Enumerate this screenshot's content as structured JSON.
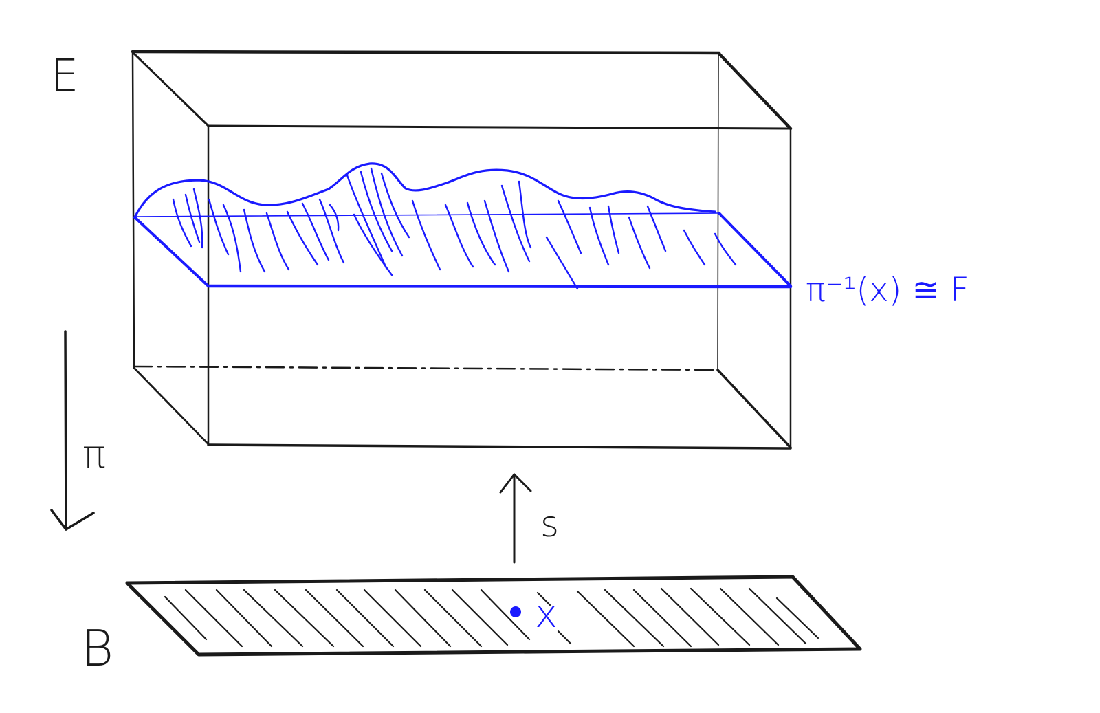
{
  "labels": {
    "total_space": "E",
    "base_space": "B",
    "projection": "π",
    "section": "s",
    "point": "x",
    "fiber": "π⁻¹(x) ≅ F"
  },
  "colors": {
    "ink": "#1a1a1a",
    "accent": "#1a1aff"
  }
}
